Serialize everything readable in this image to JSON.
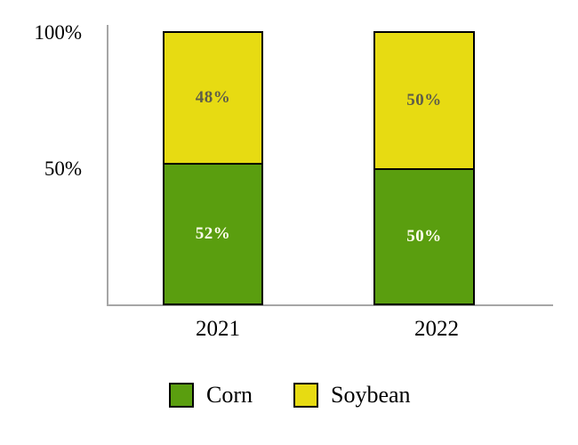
{
  "chart_data": {
    "type": "bar",
    "stacked": true,
    "title": "",
    "xlabel": "",
    "ylabel": "",
    "categories": [
      "2021",
      "2022"
    ],
    "series": [
      {
        "name": "Corn",
        "color": "#5a9e0f",
        "label_color": "#fffeee",
        "values": [
          52,
          50
        ],
        "labels": [
          "52%",
          "50%"
        ]
      },
      {
        "name": "Soybean",
        "color": "#e7db12",
        "label_color": "#5e5e49",
        "values": [
          48,
          50
        ],
        "labels": [
          "48%",
          "50%"
        ]
      }
    ],
    "y_axis": {
      "ticks": [
        "100%",
        "50%"
      ],
      "ylim": [
        0,
        100
      ],
      "unit": "percent"
    },
    "legend": {
      "position": "bottom",
      "entries": [
        "Corn",
        "Soybean"
      ]
    },
    "grid": false,
    "axis_color": "#a6a6a6"
  }
}
